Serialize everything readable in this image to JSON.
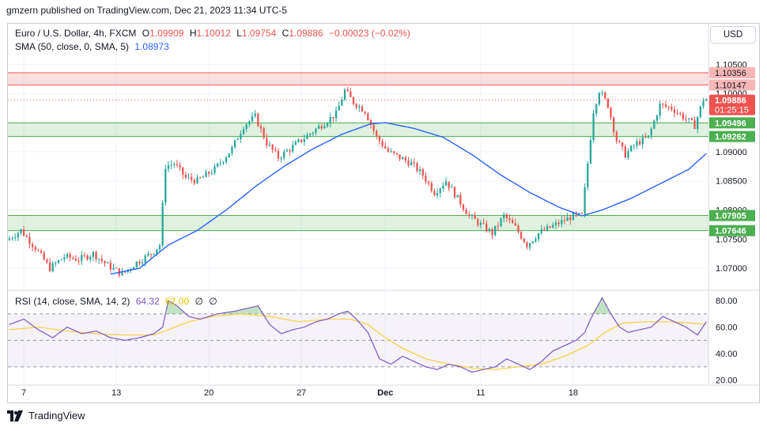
{
  "header": {
    "published": "gmzern published on TradingView.com, Dec 21, 2023 11:34 UTC-5"
  },
  "legend": {
    "symbol": "Euro / U.S. Dollar, 4h, FXCM",
    "o_label": "O",
    "o": "1.09909",
    "h_label": "H",
    "h": "1.10012",
    "l_label": "L",
    "l": "1.09754",
    "c_label": "C",
    "c": "1.09886",
    "change": "−0.00023 (−0.02%)",
    "sma_label": "SMA (50, close, 0, SMA, 5)",
    "sma_value": "1.08973",
    "rsi_label": "RSI (14, close, SMA, 14, 2)",
    "rsi_value": "64.32",
    "rsi_ma_value": "62.00",
    "rsi_div_a": "∅",
    "rsi_div_b": "∅"
  },
  "currency_button": "USD",
  "footer": {
    "brand": "TradingView"
  },
  "colors": {
    "up": "#26a69a",
    "down": "#ef5350",
    "sma": "#2962ff",
    "rsi": "#7e57c2",
    "rsi_ma": "#f5d547"
  },
  "chart_data": [
    {
      "type": "candlestick",
      "title": "Euro / U.S. Dollar, 4h, FXCM",
      "x_ticks": [
        "7",
        "13",
        "20",
        "27",
        "Dec",
        "11",
        "18"
      ],
      "y_ticks": [
        "1.10500",
        "1.10000",
        "1.09500",
        "1.09000",
        "1.08500",
        "1.08000",
        "1.07500",
        "1.07000"
      ],
      "ylim": [
        1.0665,
        1.1075
      ],
      "last_price": "1.09886",
      "countdown": "01:25:15",
      "zones": [
        {
          "kind": "resistance",
          "top": 1.10356,
          "bottom": 1.10147,
          "labels": [
            "1.10356",
            "1.10147"
          ]
        },
        {
          "kind": "support",
          "top": 1.09496,
          "bottom": 1.09262,
          "labels": [
            "1.09496",
            "1.09262"
          ]
        },
        {
          "kind": "support",
          "top": 1.07905,
          "bottom": 1.07646,
          "labels": [
            "1.07905",
            "1.07646"
          ]
        }
      ],
      "price_path": [
        [
          0,
          1.0748
        ],
        [
          5,
          1.0765
        ],
        [
          10,
          1.0735
        ],
        [
          15,
          1.07
        ],
        [
          20,
          1.072
        ],
        [
          25,
          1.0715
        ],
        [
          30,
          1.0725
        ],
        [
          35,
          1.0705
        ],
        [
          40,
          1.069
        ],
        [
          45,
          1.071
        ],
        [
          50,
          1.0725
        ],
        [
          53,
          1.074
        ],
        [
          55,
          1.0875
        ],
        [
          58,
          1.088
        ],
        [
          62,
          1.0855
        ],
        [
          66,
          1.085
        ],
        [
          72,
          1.087
        ],
        [
          78,
          1.0905
        ],
        [
          82,
          1.0945
        ],
        [
          86,
          1.096
        ],
        [
          90,
          1.0915
        ],
        [
          94,
          1.089
        ],
        [
          98,
          1.0905
        ],
        [
          102,
          1.092
        ],
        [
          106,
          1.0935
        ],
        [
          110,
          1.095
        ],
        [
          114,
          1.0965
        ],
        [
          117,
          1.1005
        ],
        [
          120,
          1.0985
        ],
        [
          124,
          1.097
        ],
        [
          128,
          1.0925
        ],
        [
          132,
          1.09
        ],
        [
          136,
          1.089
        ],
        [
          140,
          1.088
        ],
        [
          144,
          1.086
        ],
        [
          148,
          1.083
        ],
        [
          152,
          1.085
        ],
        [
          156,
          1.082
        ],
        [
          160,
          1.079
        ],
        [
          164,
          1.0775
        ],
        [
          168,
          1.076
        ],
        [
          172,
          1.079
        ],
        [
          176,
          1.077
        ],
        [
          180,
          1.074
        ],
        [
          184,
          1.076
        ],
        [
          188,
          1.077
        ],
        [
          192,
          1.078
        ],
        [
          196,
          1.079
        ],
        [
          199,
          1.079
        ],
        [
          201,
          1.088
        ],
        [
          203,
          1.097
        ],
        [
          205,
          1.1005
        ],
        [
          208,
          1.098
        ],
        [
          211,
          1.092
        ],
        [
          214,
          1.0895
        ],
        [
          218,
          1.0915
        ],
        [
          222,
          1.0925
        ],
        [
          226,
          1.098
        ],
        [
          230,
          1.0975
        ],
        [
          234,
          1.096
        ],
        [
          238,
          1.0945
        ],
        [
          241,
          1.099
        ]
      ],
      "sma_path": [
        [
          35,
          1.069
        ],
        [
          45,
          1.07
        ],
        [
          55,
          1.074
        ],
        [
          65,
          1.0765
        ],
        [
          75,
          1.08
        ],
        [
          85,
          1.084
        ],
        [
          95,
          1.0875
        ],
        [
          105,
          1.0905
        ],
        [
          115,
          1.093
        ],
        [
          125,
          1.0948
        ],
        [
          130,
          1.095
        ],
        [
          140,
          1.094
        ],
        [
          150,
          1.0925
        ],
        [
          160,
          1.0895
        ],
        [
          170,
          1.086
        ],
        [
          180,
          1.083
        ],
        [
          190,
          1.0805
        ],
        [
          198,
          1.079
        ],
        [
          205,
          1.08
        ],
        [
          215,
          1.082
        ],
        [
          225,
          1.0845
        ],
        [
          235,
          1.087
        ],
        [
          241,
          1.0897
        ]
      ]
    },
    {
      "type": "line",
      "title": "RSI (14, close, SMA, 14, 2)",
      "y_ticks": [
        "80.00",
        "60.00",
        "40.00",
        "20.00"
      ],
      "ylim": [
        18,
        86
      ],
      "levels": [
        70,
        50,
        30
      ],
      "series": [
        {
          "values": [
            [
              0,
              62
            ],
            [
              5,
              66
            ],
            [
              10,
              58
            ],
            [
              15,
              52
            ],
            [
              20,
              60
            ],
            [
              25,
              55
            ],
            [
              30,
              57
            ],
            [
              35,
              52
            ],
            [
              40,
              50
            ],
            [
              45,
              52
            ],
            [
              50,
              55
            ],
            [
              53,
              60
            ],
            [
              55,
              80
            ],
            [
              58,
              76
            ],
            [
              62,
              68
            ],
            [
              66,
              66
            ],
            [
              72,
              70
            ],
            [
              78,
              72
            ],
            [
              82,
              74
            ],
            [
              86,
              76
            ],
            [
              90,
              62
            ],
            [
              94,
              55
            ],
            [
              98,
              58
            ],
            [
              102,
              60
            ],
            [
              106,
              64
            ],
            [
              110,
              66
            ],
            [
              114,
              70
            ],
            [
              117,
              72
            ],
            [
              120,
              66
            ],
            [
              124,
              56
            ],
            [
              128,
              36
            ],
            [
              132,
              32
            ],
            [
              136,
              38
            ],
            [
              140,
              34
            ],
            [
              144,
              30
            ],
            [
              148,
              28
            ],
            [
              152,
              32
            ],
            [
              156,
              30
            ],
            [
              160,
              26
            ],
            [
              164,
              28
            ],
            [
              168,
              30
            ],
            [
              172,
              36
            ],
            [
              176,
              32
            ],
            [
              180,
              28
            ],
            [
              184,
              34
            ],
            [
              188,
              42
            ],
            [
              192,
              46
            ],
            [
              196,
              50
            ],
            [
              199,
              56
            ],
            [
              201,
              66
            ],
            [
              203,
              74
            ],
            [
              205,
              82
            ],
            [
              208,
              70
            ],
            [
              211,
              60
            ],
            [
              214,
              56
            ],
            [
              218,
              58
            ],
            [
              222,
              60
            ],
            [
              226,
              68
            ],
            [
              230,
              64
            ],
            [
              234,
              60
            ],
            [
              238,
              54
            ],
            [
              241,
              64
            ]
          ]
        },
        {
          "values": [
            [
              0,
              58
            ],
            [
              10,
              60
            ],
            [
              20,
              57
            ],
            [
              30,
              55
            ],
            [
              40,
              54
            ],
            [
              50,
              54
            ],
            [
              55,
              58
            ],
            [
              62,
              64
            ],
            [
              70,
              68
            ],
            [
              80,
              70
            ],
            [
              90,
              68
            ],
            [
              100,
              64
            ],
            [
              110,
              66
            ],
            [
              118,
              66
            ],
            [
              124,
              62
            ],
            [
              130,
              52
            ],
            [
              136,
              44
            ],
            [
              144,
              36
            ],
            [
              152,
              32
            ],
            [
              160,
              29
            ],
            [
              168,
              28
            ],
            [
              176,
              30
            ],
            [
              184,
              32
            ],
            [
              192,
              38
            ],
            [
              200,
              46
            ],
            [
              206,
              56
            ],
            [
              212,
              63
            ],
            [
              220,
              64
            ],
            [
              228,
              64
            ],
            [
              236,
              63
            ],
            [
              241,
              62
            ]
          ]
        }
      ]
    }
  ]
}
